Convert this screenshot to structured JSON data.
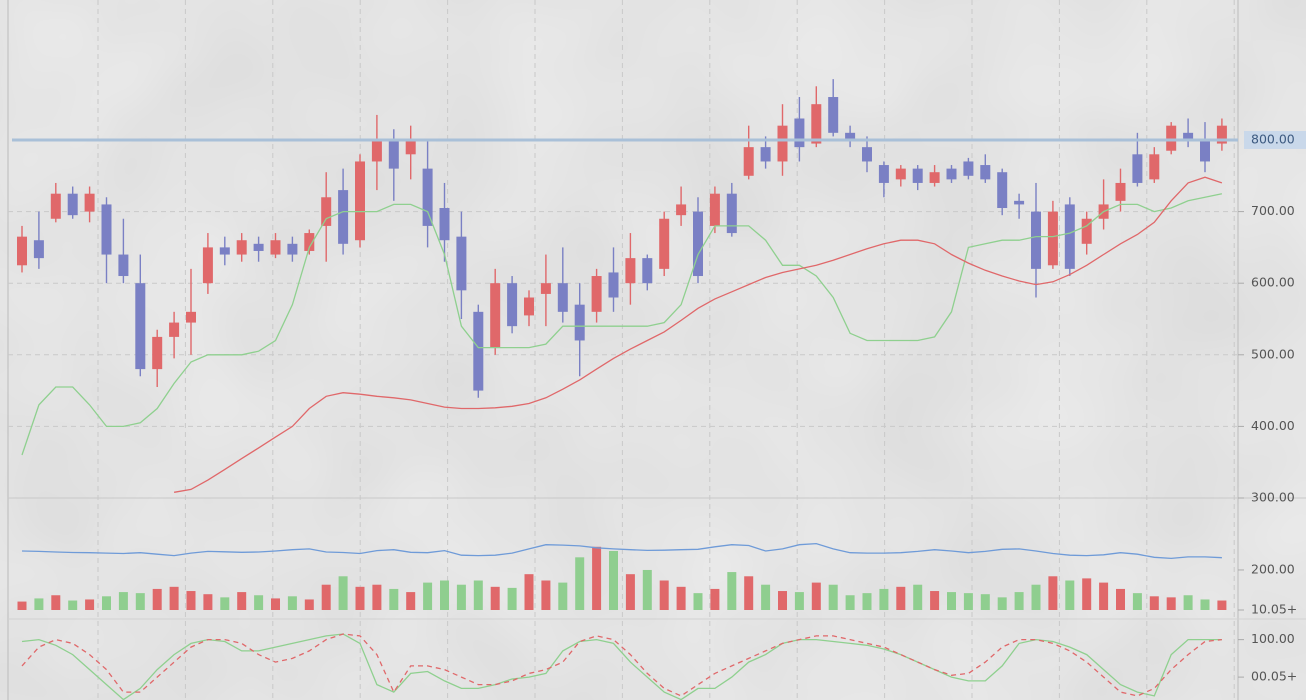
{
  "chart_data": [
    {
      "type": "candlestick",
      "up_color": "#e0686a",
      "down_color": "#7a80c4",
      "ylim": [
        300,
        995.5
      ],
      "yticks": [
        {
          "value": 300,
          "label": "300.00"
        },
        {
          "value": 400,
          "label": "400.00"
        },
        {
          "value": 500,
          "label": "500.00"
        },
        {
          "value": 600,
          "label": "600.00"
        },
        {
          "value": 700,
          "label": "700.00"
        }
      ],
      "grid": true,
      "price_line": {
        "value": 800,
        "label": "800.00",
        "color": "#a9c0d8"
      },
      "candles": [
        [
          625,
          680,
          615,
          665
        ],
        [
          660,
          700,
          620,
          635
        ],
        [
          690,
          740,
          685,
          725
        ],
        [
          725,
          735,
          690,
          695
        ],
        [
          700,
          735,
          685,
          725
        ],
        [
          710,
          720,
          600,
          640
        ],
        [
          640,
          690,
          600,
          610
        ],
        [
          600,
          640,
          470,
          480
        ],
        [
          480,
          535,
          455,
          525
        ],
        [
          525,
          560,
          495,
          545
        ],
        [
          545,
          620,
          500,
          560
        ],
        [
          600,
          670,
          585,
          650
        ],
        [
          650,
          665,
          625,
          640
        ],
        [
          640,
          670,
          630,
          660
        ],
        [
          655,
          665,
          630,
          645
        ],
        [
          640,
          670,
          635,
          660
        ],
        [
          655,
          665,
          630,
          640
        ],
        [
          645,
          675,
          640,
          670
        ],
        [
          680,
          755,
          630,
          720
        ],
        [
          730,
          760,
          640,
          655
        ],
        [
          660,
          780,
          650,
          770
        ],
        [
          770,
          835,
          730,
          800
        ],
        [
          800,
          815,
          715,
          760
        ],
        [
          780,
          820,
          745,
          800
        ],
        [
          760,
          800,
          650,
          680
        ],
        [
          705,
          740,
          630,
          660
        ],
        [
          665,
          700,
          550,
          590
        ],
        [
          560,
          570,
          440,
          450
        ],
        [
          510,
          620,
          500,
          600
        ],
        [
          600,
          610,
          530,
          540
        ],
        [
          555,
          590,
          540,
          580
        ],
        [
          585,
          640,
          540,
          600
        ],
        [
          600,
          650,
          545,
          560
        ],
        [
          570,
          600,
          470,
          520
        ],
        [
          560,
          620,
          545,
          610
        ],
        [
          615,
          650,
          560,
          580
        ],
        [
          600,
          670,
          570,
          635
        ],
        [
          635,
          640,
          590,
          600
        ],
        [
          620,
          700,
          610,
          690
        ],
        [
          695,
          735,
          680,
          710
        ],
        [
          700,
          720,
          600,
          610
        ],
        [
          680,
          735,
          670,
          725
        ],
        [
          725,
          740,
          665,
          670
        ],
        [
          750,
          820,
          745,
          790
        ],
        [
          790,
          805,
          760,
          770
        ],
        [
          770,
          850,
          750,
          820
        ],
        [
          830,
          860,
          770,
          790
        ],
        [
          795,
          875,
          790,
          850
        ],
        [
          860,
          885,
          805,
          810
        ],
        [
          810,
          820,
          790,
          800
        ],
        [
          790,
          805,
          755,
          770
        ],
        [
          765,
          770,
          720,
          740
        ],
        [
          745,
          765,
          735,
          760
        ],
        [
          760,
          765,
          730,
          740
        ],
        [
          740,
          765,
          735,
          755
        ],
        [
          760,
          765,
          740,
          745
        ],
        [
          770,
          775,
          745,
          750
        ],
        [
          765,
          780,
          740,
          745
        ],
        [
          755,
          760,
          695,
          705
        ],
        [
          715,
          725,
          690,
          710
        ],
        [
          700,
          740,
          580,
          620
        ],
        [
          625,
          715,
          620,
          700
        ],
        [
          710,
          720,
          610,
          620
        ],
        [
          655,
          700,
          640,
          690
        ],
        [
          690,
          745,
          675,
          710
        ],
        [
          715,
          760,
          700,
          740
        ],
        [
          780,
          810,
          735,
          740
        ],
        [
          745,
          790,
          740,
          780
        ],
        [
          785,
          825,
          780,
          820
        ],
        [
          810,
          830,
          790,
          800
        ],
        [
          800,
          825,
          755,
          770
        ],
        [
          795,
          830,
          785,
          820
        ]
      ],
      "overlays": [
        {
          "color": "#8fd08f",
          "values": [
            360,
            430,
            455,
            455,
            430,
            400,
            400,
            405,
            425,
            460,
            490,
            500,
            500,
            500,
            505,
            520,
            570,
            650,
            690,
            700,
            700,
            700,
            710,
            710,
            700,
            640,
            540,
            510,
            510,
            510,
            510,
            515,
            540,
            540,
            540,
            540,
            540,
            540,
            545,
            570,
            640,
            680,
            680,
            680,
            660,
            625,
            625,
            610,
            580,
            530,
            520,
            520,
            520,
            520,
            525,
            560,
            650,
            655,
            660,
            660,
            665,
            665,
            670,
            680,
            700,
            710,
            710,
            700,
            705,
            715,
            720,
            725
          ]
        },
        {
          "color": "#e0686a",
          "values": [
            null,
            null,
            null,
            null,
            null,
            null,
            null,
            null,
            null,
            308,
            312,
            325,
            340,
            355,
            370,
            385,
            400,
            425,
            442,
            447,
            445,
            442,
            440,
            437,
            432,
            427,
            425,
            425,
            426,
            428,
            432,
            440,
            452,
            465,
            480,
            495,
            508,
            520,
            532,
            548,
            565,
            578,
            588,
            598,
            608,
            615,
            620,
            625,
            632,
            640,
            648,
            655,
            660,
            660,
            655,
            640,
            628,
            618,
            610,
            603,
            598,
            602,
            612,
            625,
            640,
            655,
            668,
            685,
            715,
            740,
            748,
            740
          ]
        }
      ]
    },
    {
      "type": "bar",
      "up_color": "#e0686a",
      "down_color": "#8fce8f",
      "ylim": [
        10,
        532
      ],
      "yticks": [
        {
          "value": 200,
          "label": "200.00"
        },
        {
          "value": 10.05,
          "label": "10.05+"
        }
      ],
      "values": [
        50,
        65,
        80,
        55,
        60,
        75,
        95,
        90,
        110,
        120,
        100,
        85,
        70,
        95,
        80,
        65,
        75,
        60,
        130,
        170,
        120,
        130,
        110,
        95,
        140,
        150,
        130,
        150,
        120,
        115,
        180,
        150,
        140,
        260,
        310,
        290,
        180,
        200,
        150,
        120,
        90,
        110,
        190,
        170,
        130,
        100,
        95,
        140,
        130,
        80,
        90,
        110,
        120,
        130,
        100,
        95,
        90,
        85,
        70,
        95,
        130,
        170,
        150,
        160,
        140,
        110,
        90,
        75,
        70,
        80,
        60,
        55
      ],
      "series": [
        {
          "color": "#6f9bd8",
          "values": [
            290,
            288,
            285,
            283,
            282,
            280,
            278,
            282,
            275,
            268,
            280,
            288,
            286,
            284,
            285,
            290,
            296,
            300,
            285,
            283,
            278,
            292,
            296,
            284,
            282,
            292,
            270,
            268,
            270,
            280,
            300,
            320,
            318,
            314,
            305,
            300,
            296,
            293,
            294,
            296,
            298,
            310,
            320,
            316,
            290,
            300,
            320,
            325,
            300,
            282,
            280,
            280,
            282,
            288,
            296,
            290,
            282,
            288,
            298,
            300,
            290,
            278,
            270,
            268,
            272,
            282,
            275,
            260,
            255,
            262,
            262,
            258
          ]
        }
      ]
    },
    {
      "type": "line",
      "ylim": [
        -61,
        147
      ],
      "yticks": [
        {
          "value": 100,
          "label": "100.00"
        },
        {
          "value": 0.05,
          "label": "00.05+"
        }
      ],
      "series": [
        {
          "color": "#8fd08f",
          "dashed": false,
          "values": [
            95,
            100,
            85,
            60,
            20,
            -20,
            -60,
            -30,
            20,
            60,
            90,
            100,
            95,
            70,
            70,
            80,
            90,
            100,
            110,
            115,
            90,
            -20,
            -40,
            10,
            15,
            -10,
            -30,
            -30,
            -20,
            -5,
            0,
            10,
            70,
            95,
            100,
            90,
            40,
            0,
            -40,
            -60,
            -30,
            -30,
            0,
            40,
            60,
            90,
            100,
            100,
            95,
            90,
            85,
            75,
            60,
            40,
            20,
            0,
            -10,
            -10,
            30,
            90,
            100,
            95,
            80,
            60,
            20,
            -20,
            -40,
            -50,
            60,
            100,
            100,
            100
          ]
        },
        {
          "color": "#e0686a",
          "dashed": true,
          "values": [
            30,
            80,
            100,
            90,
            60,
            20,
            -40,
            -40,
            0,
            40,
            80,
            100,
            100,
            90,
            60,
            40,
            50,
            70,
            100,
            115,
            110,
            60,
            -40,
            30,
            30,
            20,
            0,
            -20,
            -20,
            -10,
            10,
            20,
            40,
            95,
            110,
            100,
            60,
            10,
            -30,
            -50,
            -20,
            10,
            30,
            50,
            70,
            90,
            100,
            110,
            110,
            100,
            90,
            80,
            60,
            40,
            20,
            5,
            10,
            40,
            80,
            100,
            100,
            90,
            70,
            40,
            0,
            -40,
            -50,
            -30,
            20,
            60,
            95,
            100
          ]
        }
      ]
    }
  ]
}
